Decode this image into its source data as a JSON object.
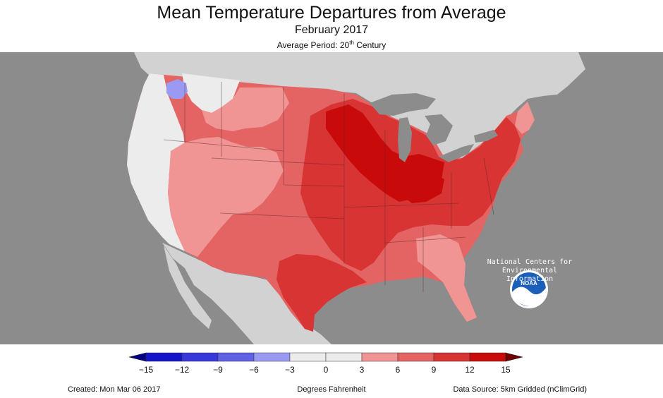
{
  "title": "Mean Temperature Departures from Average",
  "subtitle": "February 2017",
  "period_prefix": "Average Period: 20",
  "period_sup": "th",
  "period_suffix": " Century",
  "noaa": {
    "logo_text": "NOAA",
    "caption_line1": "National Centers for",
    "caption_line2": "Environmental",
    "caption_line3": "Information"
  },
  "legend": {
    "ticks": [
      "−15",
      "−12",
      "−9",
      "−6",
      "−3",
      "0",
      "3",
      "6",
      "9",
      "12",
      "15"
    ],
    "bins": [
      {
        "range": "-15 to -12",
        "color": "#1515c8"
      },
      {
        "range": "-12 to -9",
        "color": "#3737da"
      },
      {
        "range": "-9 to -6",
        "color": "#6161e6"
      },
      {
        "range": "-6 to -3",
        "color": "#9a9af2"
      },
      {
        "range": "-3 to 0",
        "color": "#ececec"
      },
      {
        "range": "0 to 3",
        "color": "#ececec"
      },
      {
        "range": "3 to 6",
        "color": "#f09494"
      },
      {
        "range": "6 to 9",
        "color": "#e46464"
      },
      {
        "range": "9 to 12",
        "color": "#d83434"
      },
      {
        "range": "12 to 15",
        "color": "#c80a0a"
      }
    ],
    "under_color": "#000080",
    "over_color": "#700000"
  },
  "colors": {
    "ocean": "#8c8c8c",
    "land_outside": "#d2d2d2",
    "lakes": "#8c8c8c",
    "near_normal": "#ececec",
    "warm_3_6": "#f09494",
    "warm_6_9": "#e46464",
    "warm_9_12": "#d83434",
    "warm_12_15": "#c80a0a",
    "cool_3_6": "#9a9af2"
  },
  "footer": {
    "created": "Created: Mon Mar 06 2017",
    "units": "Degrees Fahrenheit",
    "source": "Data Source: 5km Gridded (nClimGrid)"
  }
}
